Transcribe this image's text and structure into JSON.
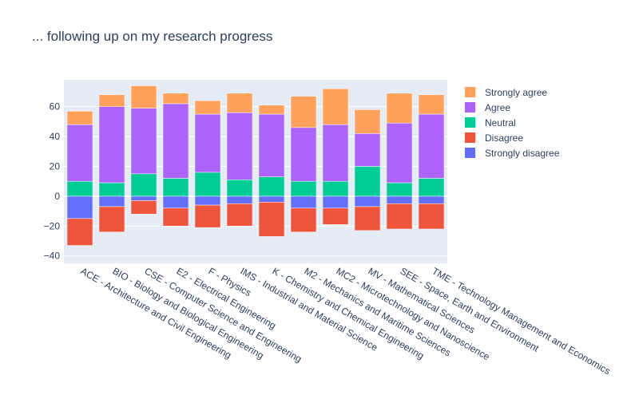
{
  "chart_data": {
    "type": "bar",
    "barmode": "relative",
    "title": "... following up on my research progress",
    "xlabel": "",
    "ylabel": "",
    "ylim": [
      -45,
      78
    ],
    "yticks": [
      -40,
      -20,
      0,
      20,
      40,
      60
    ],
    "grid": true,
    "legend_position": "right",
    "categories": [
      "ACE - Architecture and Civil Engineering",
      "BIO - Biology and Biological Engineering",
      "CSE - Computer Science and Engineering",
      "E2 - Electrical Engineering",
      "F - Physics",
      "IMS - Industrial and Material Science",
      "K - Chemistry and Chemical Engineering",
      "M2 - Mechanics and Maritime Sciences",
      "MC2 - Microtechnology and Nanoscience",
      "MV - Mathematical Sciences",
      "SEE - Space, Earth and Environment",
      "TME - Technology Management and Economics"
    ],
    "series": [
      {
        "name": "Strongly disagree",
        "color": "#636efa",
        "values": [
          -15,
          -7,
          -3,
          -8,
          -6,
          -5,
          -4,
          -8,
          -8,
          -7,
          -5,
          -5
        ]
      },
      {
        "name": "Disagree",
        "color": "#ef553b",
        "values": [
          -18,
          -17,
          -9,
          -12,
          -15,
          -15,
          -23,
          -16,
          -11,
          -16,
          -17,
          -17
        ]
      },
      {
        "name": "Neutral",
        "color": "#00cc96",
        "values": [
          10,
          9,
          15,
          12,
          16,
          11,
          13,
          10,
          10,
          20,
          9,
          12
        ]
      },
      {
        "name": "Agree",
        "color": "#ab63fa",
        "values": [
          38,
          51,
          44,
          50,
          39,
          45,
          42,
          36,
          38,
          22,
          40,
          43
        ]
      },
      {
        "name": "Strongly agree",
        "color": "#ffa15a",
        "values": [
          9,
          8,
          15,
          7,
          9,
          13,
          6,
          21,
          24,
          16,
          20,
          13
        ]
      }
    ],
    "legend_order": [
      "Strongly agree",
      "Agree",
      "Neutral",
      "Disagree",
      "Strongly disagree"
    ]
  }
}
